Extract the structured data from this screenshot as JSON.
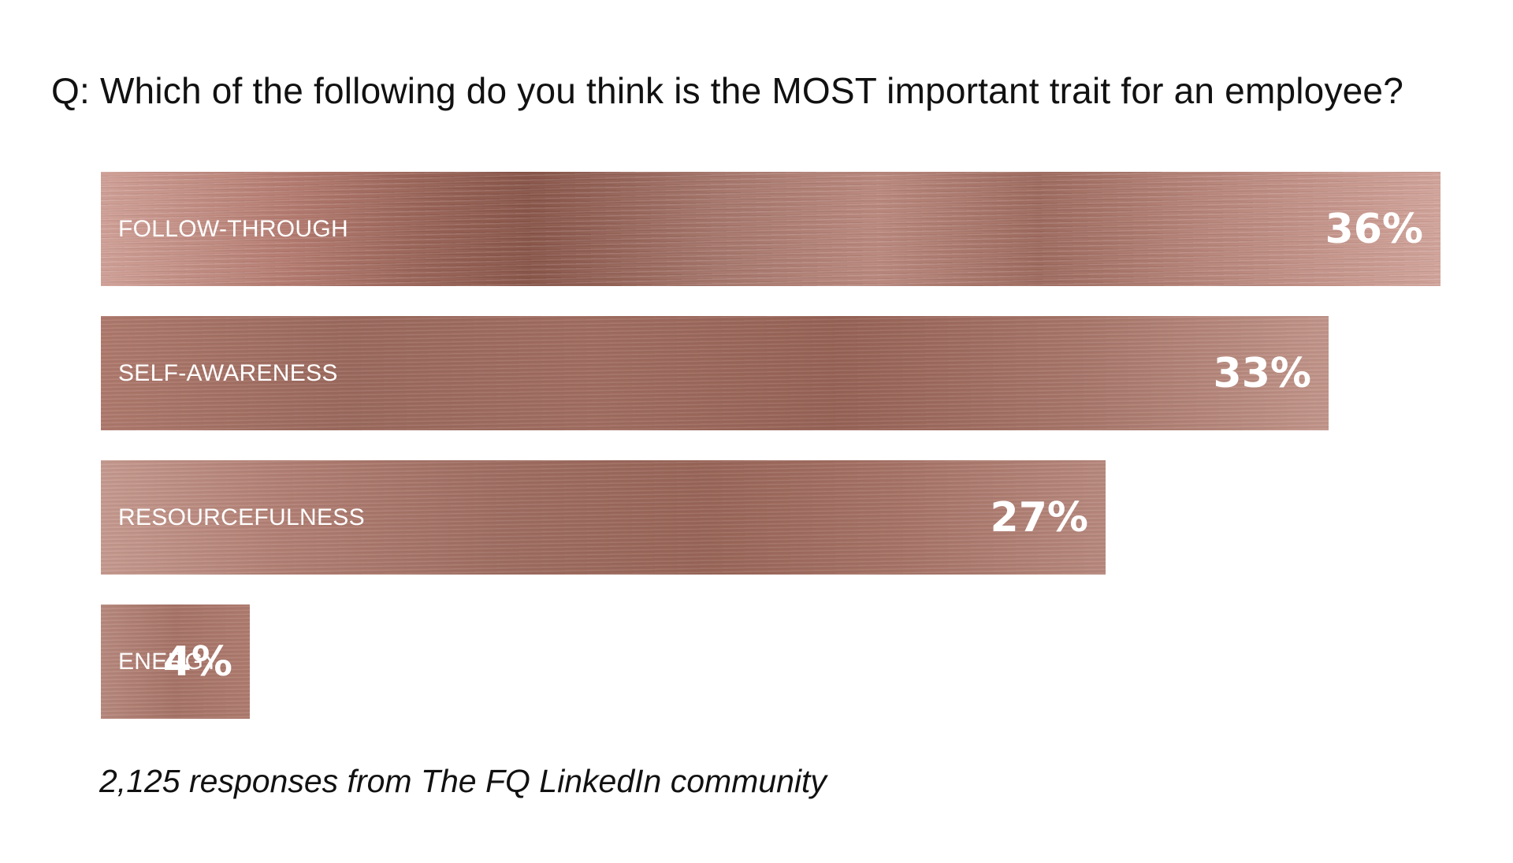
{
  "question": "Q: Which of the following do you think is the MOST important trait for an employee?",
  "footnote": "2,125 responses from The FQ LinkedIn community",
  "colors": {
    "bar_base": "#a87468",
    "bar_light": "#d4a59b",
    "bar_dark": "#8a5549",
    "label_text": "#ffffff",
    "body_text": "#111111"
  },
  "chart_data": {
    "type": "bar",
    "orientation": "horizontal",
    "categories": [
      "FOLLOW-THROUGH",
      "SELF-AWARENESS",
      "RESOURCEFULNESS",
      "ENERGY"
    ],
    "values": [
      36,
      33,
      27,
      4
    ],
    "value_labels": [
      "36%",
      "33%",
      "27%",
      "4%"
    ],
    "unit": "%",
    "xlim": [
      0,
      36
    ],
    "grid": false,
    "legend": "none"
  }
}
